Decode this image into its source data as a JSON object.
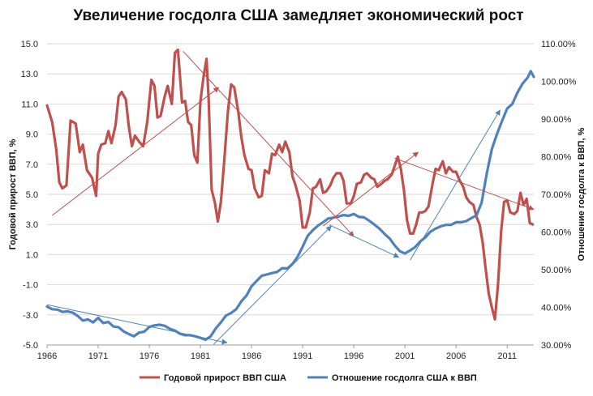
{
  "chart_data": {
    "type": "line",
    "title": "Увеличение госдолга США замедляет экономический рост",
    "y_left_label": "Годовой прирост ВВП, %",
    "y_right_label": "Отношение госдолга к ВВП, %",
    "x_ticks": [
      1966,
      1971,
      1976,
      1981,
      1986,
      1991,
      1996,
      2001,
      2006,
      2011
    ],
    "x_range": [
      1966,
      2013.6
    ],
    "y_left_ticks": [
      "15.0",
      "13.0",
      "11.0",
      "9.0",
      "7.0",
      "5.0",
      "3.0",
      "1.0",
      "-1.0",
      "-3.0",
      "-5.0"
    ],
    "y_left_range": [
      -5,
      15
    ],
    "y_right_ticks": [
      "110.00%",
      "100.00%",
      "90.00%",
      "80.00%",
      "70.00%",
      "60.00%",
      "50.00%",
      "40.00%",
      "30.00%"
    ],
    "y_right_range": [
      30,
      110
    ],
    "grid": "horizontal",
    "legend_position": "bottom",
    "series": [
      {
        "name": "Годовой прирост ВВП США",
        "axis": "left",
        "color": "#c0504d",
        "points": [
          [
            1966.0,
            10.9
          ],
          [
            1966.5,
            9.8
          ],
          [
            1966.9,
            8.0
          ],
          [
            1967.2,
            5.8
          ],
          [
            1967.5,
            5.4
          ],
          [
            1967.9,
            5.6
          ],
          [
            1968.3,
            9.9
          ],
          [
            1968.8,
            9.7
          ],
          [
            1969.2,
            7.8
          ],
          [
            1969.5,
            8.3
          ],
          [
            1969.9,
            6.6
          ],
          [
            1970.4,
            6.1
          ],
          [
            1970.8,
            4.9
          ],
          [
            1971.0,
            7.7
          ],
          [
            1971.3,
            8.3
          ],
          [
            1971.7,
            8.4
          ],
          [
            1972.0,
            9.2
          ],
          [
            1972.3,
            8.4
          ],
          [
            1972.7,
            9.6
          ],
          [
            1973.0,
            11.5
          ],
          [
            1973.3,
            11.8
          ],
          [
            1973.7,
            11.3
          ],
          [
            1974.0,
            9.5
          ],
          [
            1974.3,
            8.2
          ],
          [
            1974.6,
            8.9
          ],
          [
            1975.0,
            8.5
          ],
          [
            1975.4,
            8.2
          ],
          [
            1975.8,
            9.8
          ],
          [
            1976.2,
            12.6
          ],
          [
            1976.5,
            12.2
          ],
          [
            1976.8,
            10.1
          ],
          [
            1977.1,
            10.2
          ],
          [
            1977.5,
            11.5
          ],
          [
            1977.8,
            12.2
          ],
          [
            1978.2,
            11.0
          ],
          [
            1978.5,
            14.4
          ],
          [
            1978.8,
            14.6
          ],
          [
            1979.2,
            11.1
          ],
          [
            1979.5,
            11.2
          ],
          [
            1979.8,
            9.8
          ],
          [
            1980.1,
            9.6
          ],
          [
            1980.4,
            7.6
          ],
          [
            1980.7,
            7.1
          ],
          [
            1981.0,
            11.2
          ],
          [
            1981.3,
            12.8
          ],
          [
            1981.6,
            14.0
          ],
          [
            1981.8,
            11.3
          ],
          [
            1982.1,
            5.3
          ],
          [
            1982.4,
            4.5
          ],
          [
            1982.7,
            3.2
          ],
          [
            1983.0,
            4.5
          ],
          [
            1983.3,
            7.0
          ],
          [
            1983.7,
            10.6
          ],
          [
            1984.0,
            12.3
          ],
          [
            1984.3,
            12.1
          ],
          [
            1984.7,
            10.5
          ],
          [
            1985.0,
            8.8
          ],
          [
            1985.3,
            7.6
          ],
          [
            1985.7,
            6.7
          ],
          [
            1986.0,
            6.6
          ],
          [
            1986.3,
            5.4
          ],
          [
            1986.7,
            4.8
          ],
          [
            1987.0,
            4.9
          ],
          [
            1987.3,
            6.6
          ],
          [
            1987.7,
            6.4
          ],
          [
            1988.0,
            7.7
          ],
          [
            1988.3,
            7.6
          ],
          [
            1988.7,
            8.3
          ],
          [
            1989.0,
            7.8
          ],
          [
            1989.3,
            8.5
          ],
          [
            1989.7,
            7.8
          ],
          [
            1990.0,
            6.2
          ],
          [
            1990.3,
            5.6
          ],
          [
            1990.7,
            4.6
          ],
          [
            1991.0,
            2.8
          ],
          [
            1991.3,
            2.8
          ],
          [
            1991.7,
            3.8
          ],
          [
            1992.0,
            5.4
          ],
          [
            1992.3,
            5.5
          ],
          [
            1992.7,
            6.0
          ],
          [
            1993.0,
            5.1
          ],
          [
            1993.3,
            5.2
          ],
          [
            1993.7,
            5.6
          ],
          [
            1994.0,
            6.1
          ],
          [
            1994.3,
            6.4
          ],
          [
            1994.7,
            6.4
          ],
          [
            1995.0,
            5.9
          ],
          [
            1995.3,
            4.4
          ],
          [
            1995.7,
            4.4
          ],
          [
            1996.0,
            4.9
          ],
          [
            1996.3,
            5.7
          ],
          [
            1996.7,
            5.8
          ],
          [
            1997.0,
            6.3
          ],
          [
            1997.3,
            6.4
          ],
          [
            1997.7,
            6.1
          ],
          [
            1998.0,
            6.0
          ],
          [
            1998.3,
            5.5
          ],
          [
            1998.7,
            5.7
          ],
          [
            1999.0,
            5.9
          ],
          [
            1999.3,
            6.0
          ],
          [
            1999.7,
            6.3
          ],
          [
            2000.0,
            6.9
          ],
          [
            2000.3,
            7.5
          ],
          [
            2000.6,
            6.7
          ],
          [
            2000.9,
            5.3
          ],
          [
            2001.2,
            3.3
          ],
          [
            2001.5,
            2.4
          ],
          [
            2001.8,
            2.4
          ],
          [
            2002.1,
            3.0
          ],
          [
            2002.4,
            3.8
          ],
          [
            2002.7,
            3.8
          ],
          [
            2003.0,
            3.9
          ],
          [
            2003.3,
            4.2
          ],
          [
            2003.7,
            5.7
          ],
          [
            2004.0,
            6.7
          ],
          [
            2004.3,
            6.6
          ],
          [
            2004.7,
            7.2
          ],
          [
            2005.0,
            6.4
          ],
          [
            2005.3,
            6.8
          ],
          [
            2005.7,
            6.5
          ],
          [
            2006.0,
            6.5
          ],
          [
            2006.3,
            6.0
          ],
          [
            2006.7,
            5.5
          ],
          [
            2007.0,
            4.8
          ],
          [
            2007.3,
            4.5
          ],
          [
            2007.7,
            4.3
          ],
          [
            2008.0,
            3.5
          ],
          [
            2008.3,
            3.0
          ],
          [
            2008.6,
            1.8
          ],
          [
            2008.9,
            0.0
          ],
          [
            2009.2,
            -1.6
          ],
          [
            2009.5,
            -2.5
          ],
          [
            2009.8,
            -3.3
          ],
          [
            2010.1,
            -1.0
          ],
          [
            2010.4,
            2.5
          ],
          [
            2010.7,
            4.5
          ],
          [
            2011.0,
            4.6
          ],
          [
            2011.3,
            3.8
          ],
          [
            2011.7,
            3.7
          ],
          [
            2012.0,
            3.9
          ],
          [
            2012.3,
            5.1
          ],
          [
            2012.6,
            4.3
          ],
          [
            2012.9,
            4.7
          ],
          [
            2013.2,
            3.1
          ],
          [
            2013.5,
            3.0
          ]
        ]
      },
      {
        "name": "Отношение госдолга США к ВВП",
        "axis": "right",
        "color": "#4f81bd",
        "points": [
          [
            1966.0,
            40.2
          ],
          [
            1966.5,
            39.5
          ],
          [
            1967.0,
            39.4
          ],
          [
            1967.5,
            38.8
          ],
          [
            1968.0,
            38.9
          ],
          [
            1968.5,
            38.6
          ],
          [
            1969.0,
            37.7
          ],
          [
            1969.5,
            36.5
          ],
          [
            1970.0,
            36.8
          ],
          [
            1970.5,
            36.0
          ],
          [
            1971.0,
            37.2
          ],
          [
            1971.5,
            35.8
          ],
          [
            1972.0,
            36.1
          ],
          [
            1972.5,
            34.9
          ],
          [
            1973.0,
            34.7
          ],
          [
            1973.5,
            33.6
          ],
          [
            1974.0,
            32.9
          ],
          [
            1974.5,
            32.3
          ],
          [
            1975.0,
            33.3
          ],
          [
            1975.5,
            33.5
          ],
          [
            1976.0,
            34.8
          ],
          [
            1976.5,
            35.2
          ],
          [
            1977.0,
            35.4
          ],
          [
            1977.5,
            35.1
          ],
          [
            1978.0,
            34.3
          ],
          [
            1978.5,
            33.8
          ],
          [
            1979.0,
            33.0
          ],
          [
            1979.5,
            32.6
          ],
          [
            1980.0,
            32.6
          ],
          [
            1980.5,
            32.3
          ],
          [
            1981.0,
            31.9
          ],
          [
            1981.5,
            31.4
          ],
          [
            1982.0,
            32.3
          ],
          [
            1982.5,
            34.4
          ],
          [
            1983.0,
            36.0
          ],
          [
            1983.5,
            37.8
          ],
          [
            1984.0,
            38.5
          ],
          [
            1984.5,
            39.5
          ],
          [
            1985.0,
            41.6
          ],
          [
            1985.5,
            43.1
          ],
          [
            1986.0,
            45.6
          ],
          [
            1986.5,
            47.0
          ],
          [
            1987.0,
            48.4
          ],
          [
            1987.5,
            48.7
          ],
          [
            1988.0,
            49.1
          ],
          [
            1988.5,
            49.4
          ],
          [
            1989.0,
            50.4
          ],
          [
            1989.5,
            50.3
          ],
          [
            1990.0,
            51.5
          ],
          [
            1990.5,
            53.4
          ],
          [
            1991.0,
            56.1
          ],
          [
            1991.5,
            59.0
          ],
          [
            1992.0,
            60.5
          ],
          [
            1992.5,
            61.7
          ],
          [
            1993.0,
            62.6
          ],
          [
            1993.5,
            63.6
          ],
          [
            1994.0,
            63.8
          ],
          [
            1994.5,
            64.1
          ],
          [
            1995.0,
            64.5
          ],
          [
            1995.5,
            64.3
          ],
          [
            1996.0,
            64.8
          ],
          [
            1996.5,
            64.0
          ],
          [
            1997.0,
            63.9
          ],
          [
            1997.5,
            63.0
          ],
          [
            1998.0,
            62.0
          ],
          [
            1998.5,
            60.9
          ],
          [
            1999.0,
            59.5
          ],
          [
            1999.5,
            58.3
          ],
          [
            2000.0,
            56.4
          ],
          [
            2000.5,
            54.9
          ],
          [
            2001.0,
            54.3
          ],
          [
            2001.5,
            55.1
          ],
          [
            2002.0,
            56.0
          ],
          [
            2002.5,
            57.5
          ],
          [
            2003.0,
            58.6
          ],
          [
            2003.5,
            60.1
          ],
          [
            2004.0,
            60.9
          ],
          [
            2004.5,
            61.5
          ],
          [
            2005.0,
            61.9
          ],
          [
            2005.5,
            61.9
          ],
          [
            2006.0,
            62.6
          ],
          [
            2006.5,
            62.6
          ],
          [
            2007.0,
            62.9
          ],
          [
            2007.5,
            63.7
          ],
          [
            2008.0,
            64.4
          ],
          [
            2008.5,
            67.8
          ],
          [
            2009.0,
            75.5
          ],
          [
            2009.5,
            82.0
          ],
          [
            2010.0,
            86.0
          ],
          [
            2010.5,
            89.5
          ],
          [
            2011.0,
            92.8
          ],
          [
            2011.5,
            94.0
          ],
          [
            2012.0,
            97.0
          ],
          [
            2012.5,
            99.4
          ],
          [
            2013.0,
            101.0
          ],
          [
            2013.3,
            102.7
          ],
          [
            2013.6,
            101.2
          ]
        ]
      }
    ],
    "trend_arrows": [
      {
        "axis": "left",
        "color": "#c0504d",
        "from": [
          1966.5,
          3.6
        ],
        "to": [
          1982.8,
          12.1
        ]
      },
      {
        "axis": "left",
        "color": "#c0504d",
        "from": [
          1979.3,
          14.5
        ],
        "to": [
          1996.0,
          2.2
        ]
      },
      {
        "axis": "left",
        "color": "#c0504d",
        "from": [
          1993.0,
          2.9
        ],
        "to": [
          2002.3,
          7.8
        ]
      },
      {
        "axis": "left",
        "color": "#c0504d",
        "from": [
          2000.0,
          7.4
        ],
        "to": [
          2013.6,
          4.0
        ]
      },
      {
        "axis": "right",
        "color": "#4f81bd",
        "from": [
          1966.0,
          40.7
        ],
        "to": [
          1983.6,
          30.6
        ]
      },
      {
        "axis": "right",
        "color": "#4f81bd",
        "from": [
          1982.3,
          30.2
        ],
        "to": [
          1993.8,
          61.6
        ]
      },
      {
        "axis": "right",
        "color": "#4f81bd",
        "from": [
          1993.6,
          61.9
        ],
        "to": [
          2000.4,
          53.3
        ]
      },
      {
        "axis": "right",
        "color": "#4f81bd",
        "from": [
          2001.5,
          52.5
        ],
        "to": [
          2010.3,
          92.4
        ]
      }
    ]
  }
}
